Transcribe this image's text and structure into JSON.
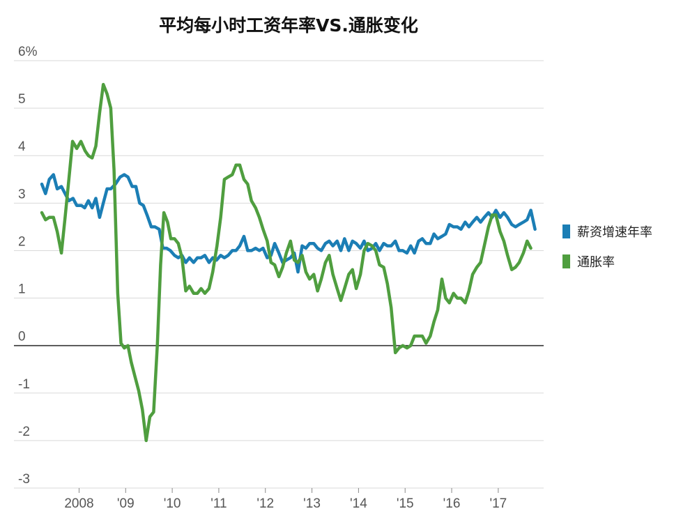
{
  "chart_data": {
    "type": "line",
    "title": "平均每小时工资年率VS.通胀变化",
    "xlabel": "",
    "ylabel": "",
    "ylim": [
      -3,
      6
    ],
    "y_ticks": [
      "6%",
      "5",
      "4",
      "3",
      "2",
      "1",
      "0",
      "-1",
      "-2",
      "-3"
    ],
    "y_tick_values": [
      6,
      5,
      4,
      3,
      2,
      1,
      0,
      -1,
      -2,
      -3
    ],
    "x_ticks": [
      "2008",
      "'09",
      "'10",
      "'11",
      "'12",
      "'13",
      "'14",
      "'15",
      "'16",
      "'17"
    ],
    "x_tick_values": [
      2008,
      2009,
      2010,
      2011,
      2012,
      2013,
      2014,
      2015,
      2016,
      2017
    ],
    "xlim": [
      2007.2,
      2017.9
    ],
    "grid": true,
    "legend_position": "right",
    "series": [
      {
        "name": "薪资增速年率",
        "color": "#1B7EB5",
        "points": [
          [
            2007.2,
            3.4
          ],
          [
            2007.28,
            3.2
          ],
          [
            2007.36,
            3.5
          ],
          [
            2007.45,
            3.6
          ],
          [
            2007.53,
            3.3
          ],
          [
            2007.62,
            3.35
          ],
          [
            2007.7,
            3.2
          ],
          [
            2007.78,
            3.05
          ],
          [
            2007.87,
            3.1
          ],
          [
            2007.95,
            2.95
          ],
          [
            2008.05,
            2.95
          ],
          [
            2008.12,
            2.9
          ],
          [
            2008.2,
            3.05
          ],
          [
            2008.28,
            2.9
          ],
          [
            2008.36,
            3.1
          ],
          [
            2008.44,
            2.7
          ],
          [
            2008.52,
            3.0
          ],
          [
            2008.6,
            3.3
          ],
          [
            2008.68,
            3.3
          ],
          [
            2008.78,
            3.4
          ],
          [
            2008.88,
            3.55
          ],
          [
            2008.97,
            3.6
          ],
          [
            2009.05,
            3.55
          ],
          [
            2009.14,
            3.35
          ],
          [
            2009.22,
            3.35
          ],
          [
            2009.3,
            3.0
          ],
          [
            2009.38,
            2.95
          ],
          [
            2009.46,
            2.75
          ],
          [
            2009.55,
            2.5
          ],
          [
            2009.63,
            2.5
          ],
          [
            2009.72,
            2.45
          ],
          [
            2009.8,
            2.05
          ],
          [
            2009.88,
            2.05
          ],
          [
            2009.96,
            2.0
          ],
          [
            2010.05,
            1.9
          ],
          [
            2010.13,
            1.85
          ],
          [
            2010.21,
            1.9
          ],
          [
            2010.29,
            1.75
          ],
          [
            2010.37,
            1.85
          ],
          [
            2010.46,
            1.75
          ],
          [
            2010.54,
            1.85
          ],
          [
            2010.62,
            1.85
          ],
          [
            2010.7,
            1.9
          ],
          [
            2010.79,
            1.75
          ],
          [
            2010.87,
            1.85
          ],
          [
            2010.95,
            1.8
          ],
          [
            2011.04,
            1.9
          ],
          [
            2011.12,
            1.85
          ],
          [
            2011.2,
            1.9
          ],
          [
            2011.29,
            2.0
          ],
          [
            2011.37,
            2.0
          ],
          [
            2011.45,
            2.1
          ],
          [
            2011.54,
            2.3
          ],
          [
            2011.62,
            2.0
          ],
          [
            2011.7,
            2.0
          ],
          [
            2011.79,
            2.05
          ],
          [
            2011.87,
            2.0
          ],
          [
            2011.95,
            2.05
          ],
          [
            2012.04,
            1.85
          ],
          [
            2012.12,
            1.9
          ],
          [
            2012.2,
            2.15
          ],
          [
            2012.29,
            1.95
          ],
          [
            2012.37,
            1.75
          ],
          [
            2012.45,
            1.8
          ],
          [
            2012.54,
            1.85
          ],
          [
            2012.62,
            1.95
          ],
          [
            2012.7,
            1.55
          ],
          [
            2012.79,
            2.1
          ],
          [
            2012.87,
            2.05
          ],
          [
            2012.95,
            2.15
          ],
          [
            2013.04,
            2.15
          ],
          [
            2013.12,
            2.05
          ],
          [
            2013.2,
            2.0
          ],
          [
            2013.29,
            2.15
          ],
          [
            2013.37,
            2.2
          ],
          [
            2013.45,
            2.1
          ],
          [
            2013.54,
            2.2
          ],
          [
            2013.62,
            2.0
          ],
          [
            2013.7,
            2.25
          ],
          [
            2013.79,
            2.0
          ],
          [
            2013.87,
            2.2
          ],
          [
            2013.95,
            2.15
          ],
          [
            2014.04,
            2.05
          ],
          [
            2014.12,
            2.2
          ],
          [
            2014.2,
            2.0
          ],
          [
            2014.29,
            2.05
          ],
          [
            2014.37,
            2.15
          ],
          [
            2014.45,
            2.0
          ],
          [
            2014.54,
            2.15
          ],
          [
            2014.62,
            2.1
          ],
          [
            2014.7,
            2.1
          ],
          [
            2014.79,
            2.2
          ],
          [
            2014.87,
            2.0
          ],
          [
            2014.95,
            2.0
          ],
          [
            2015.04,
            1.95
          ],
          [
            2015.12,
            2.1
          ],
          [
            2015.2,
            1.95
          ],
          [
            2015.29,
            2.2
          ],
          [
            2015.37,
            2.25
          ],
          [
            2015.45,
            2.15
          ],
          [
            2015.54,
            2.15
          ],
          [
            2015.62,
            2.35
          ],
          [
            2015.7,
            2.25
          ],
          [
            2015.79,
            2.3
          ],
          [
            2015.87,
            2.35
          ],
          [
            2015.95,
            2.55
          ],
          [
            2016.04,
            2.5
          ],
          [
            2016.12,
            2.5
          ],
          [
            2016.2,
            2.45
          ],
          [
            2016.29,
            2.6
          ],
          [
            2016.37,
            2.5
          ],
          [
            2016.45,
            2.6
          ],
          [
            2016.54,
            2.7
          ],
          [
            2016.62,
            2.6
          ],
          [
            2016.7,
            2.7
          ],
          [
            2016.79,
            2.8
          ],
          [
            2016.87,
            2.7
          ],
          [
            2016.95,
            2.85
          ],
          [
            2017.04,
            2.7
          ],
          [
            2017.12,
            2.8
          ],
          [
            2017.2,
            2.7
          ],
          [
            2017.29,
            2.55
          ],
          [
            2017.37,
            2.5
          ],
          [
            2017.45,
            2.55
          ],
          [
            2017.54,
            2.6
          ],
          [
            2017.62,
            2.65
          ],
          [
            2017.7,
            2.85
          ],
          [
            2017.79,
            2.45
          ]
        ]
      },
      {
        "name": "通胀率",
        "color": "#4F9E3F",
        "points": [
          [
            2007.2,
            2.8
          ],
          [
            2007.28,
            2.65
          ],
          [
            2007.36,
            2.7
          ],
          [
            2007.45,
            2.7
          ],
          [
            2007.53,
            2.4
          ],
          [
            2007.62,
            1.95
          ],
          [
            2007.7,
            2.7
          ],
          [
            2007.78,
            3.5
          ],
          [
            2007.86,
            4.3
          ],
          [
            2007.95,
            4.15
          ],
          [
            2008.04,
            4.3
          ],
          [
            2008.13,
            4.1
          ],
          [
            2008.2,
            4.0
          ],
          [
            2008.28,
            3.95
          ],
          [
            2008.36,
            4.2
          ],
          [
            2008.44,
            4.9
          ],
          [
            2008.52,
            5.5
          ],
          [
            2008.6,
            5.3
          ],
          [
            2008.68,
            5.0
          ],
          [
            2008.75,
            3.7
          ],
          [
            2008.83,
            1.1
          ],
          [
            2008.9,
            0.05
          ],
          [
            2008.97,
            -0.05
          ],
          [
            2009.05,
            0.0
          ],
          [
            2009.12,
            -0.35
          ],
          [
            2009.2,
            -0.65
          ],
          [
            2009.28,
            -0.95
          ],
          [
            2009.36,
            -1.35
          ],
          [
            2009.44,
            -2.0
          ],
          [
            2009.52,
            -1.5
          ],
          [
            2009.6,
            -1.4
          ],
          [
            2009.68,
            0.0
          ],
          [
            2009.75,
            1.7
          ],
          [
            2009.82,
            2.8
          ],
          [
            2009.9,
            2.6
          ],
          [
            2009.97,
            2.25
          ],
          [
            2010.05,
            2.25
          ],
          [
            2010.13,
            2.15
          ],
          [
            2010.21,
            1.85
          ],
          [
            2010.29,
            1.15
          ],
          [
            2010.37,
            1.25
          ],
          [
            2010.46,
            1.1
          ],
          [
            2010.54,
            1.1
          ],
          [
            2010.62,
            1.2
          ],
          [
            2010.7,
            1.1
          ],
          [
            2010.79,
            1.2
          ],
          [
            2010.87,
            1.55
          ],
          [
            2010.96,
            2.1
          ],
          [
            2011.04,
            2.7
          ],
          [
            2011.12,
            3.5
          ],
          [
            2011.2,
            3.55
          ],
          [
            2011.29,
            3.6
          ],
          [
            2011.37,
            3.8
          ],
          [
            2011.45,
            3.8
          ],
          [
            2011.54,
            3.5
          ],
          [
            2011.62,
            3.4
          ],
          [
            2011.7,
            3.05
          ],
          [
            2011.79,
            2.9
          ],
          [
            2011.87,
            2.7
          ],
          [
            2011.95,
            2.45
          ],
          [
            2012.04,
            2.2
          ],
          [
            2012.12,
            1.75
          ],
          [
            2012.2,
            1.7
          ],
          [
            2012.29,
            1.45
          ],
          [
            2012.37,
            1.65
          ],
          [
            2012.45,
            1.95
          ],
          [
            2012.54,
            2.2
          ],
          [
            2012.62,
            1.8
          ],
          [
            2012.7,
            1.75
          ],
          [
            2012.79,
            1.9
          ],
          [
            2012.87,
            1.55
          ],
          [
            2012.95,
            1.4
          ],
          [
            2013.04,
            1.5
          ],
          [
            2013.12,
            1.15
          ],
          [
            2013.2,
            1.4
          ],
          [
            2013.29,
            1.75
          ],
          [
            2013.37,
            1.9
          ],
          [
            2013.45,
            1.5
          ],
          [
            2013.54,
            1.2
          ],
          [
            2013.62,
            0.95
          ],
          [
            2013.7,
            1.2
          ],
          [
            2013.79,
            1.5
          ],
          [
            2013.87,
            1.6
          ],
          [
            2013.95,
            1.2
          ],
          [
            2014.04,
            1.5
          ],
          [
            2014.12,
            2.0
          ],
          [
            2014.2,
            2.15
          ],
          [
            2014.29,
            2.1
          ],
          [
            2014.37,
            2.0
          ],
          [
            2014.45,
            1.7
          ],
          [
            2014.54,
            1.65
          ],
          [
            2014.62,
            1.3
          ],
          [
            2014.7,
            0.8
          ],
          [
            2014.79,
            -0.15
          ],
          [
            2014.87,
            -0.05
          ],
          [
            2014.95,
            0.0
          ],
          [
            2015.04,
            -0.05
          ],
          [
            2015.12,
            0.0
          ],
          [
            2015.2,
            0.2
          ],
          [
            2015.29,
            0.2
          ],
          [
            2015.37,
            0.2
          ],
          [
            2015.45,
            0.05
          ],
          [
            2015.54,
            0.2
          ],
          [
            2015.62,
            0.5
          ],
          [
            2015.7,
            0.75
          ],
          [
            2015.79,
            1.4
          ],
          [
            2015.87,
            1.0
          ],
          [
            2015.95,
            0.9
          ],
          [
            2016.04,
            1.1
          ],
          [
            2016.12,
            1.0
          ],
          [
            2016.2,
            1.0
          ],
          [
            2016.29,
            0.9
          ],
          [
            2016.37,
            1.15
          ],
          [
            2016.45,
            1.5
          ],
          [
            2016.54,
            1.65
          ],
          [
            2016.62,
            1.75
          ],
          [
            2016.7,
            2.1
          ],
          [
            2016.79,
            2.5
          ],
          [
            2016.87,
            2.75
          ],
          [
            2016.95,
            2.75
          ],
          [
            2017.04,
            2.4
          ],
          [
            2017.12,
            2.2
          ],
          [
            2017.2,
            1.9
          ],
          [
            2017.29,
            1.6
          ],
          [
            2017.37,
            1.65
          ],
          [
            2017.45,
            1.75
          ],
          [
            2017.54,
            1.95
          ],
          [
            2017.62,
            2.2
          ],
          [
            2017.7,
            2.05
          ]
        ]
      }
    ]
  }
}
